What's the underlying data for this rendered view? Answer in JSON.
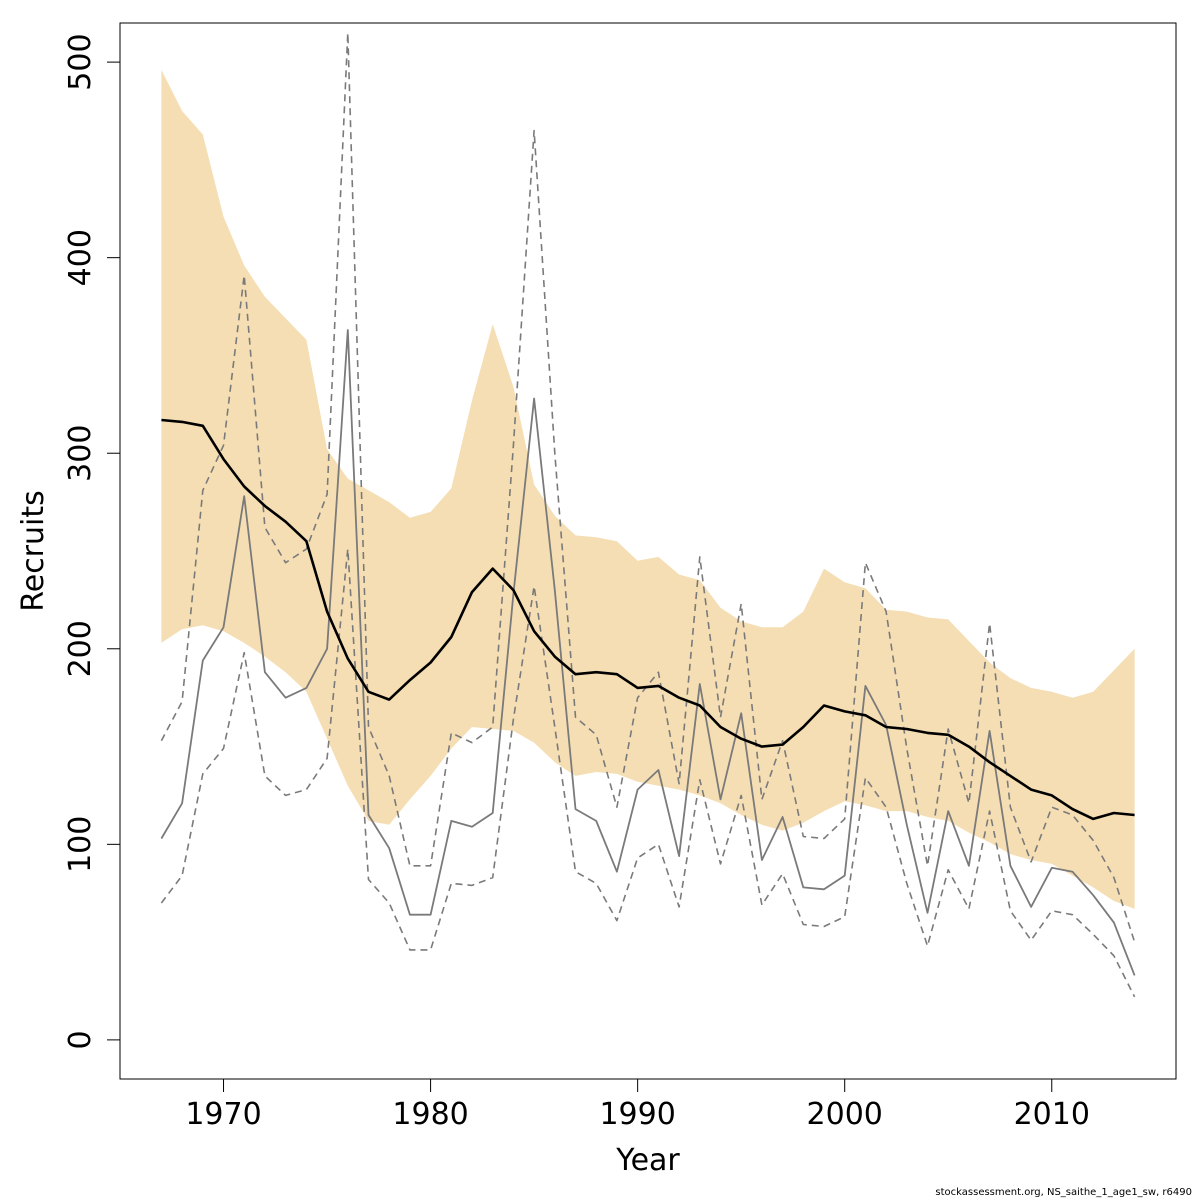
{
  "chart_data": {
    "type": "line",
    "xlabel": "Year",
    "ylabel": "Recruits",
    "xlim": [
      1965,
      2016
    ],
    "ylim": [
      -20,
      520
    ],
    "x_ticks": [
      1970,
      1980,
      1990,
      2000,
      2010
    ],
    "y_ticks": [
      0,
      100,
      200,
      300,
      400,
      500
    ],
    "grid": false,
    "colors": {
      "band": "#f5deb3",
      "main": "#000000",
      "obs": "#7a7a7a"
    },
    "x": [
      1967,
      1968,
      1969,
      1970,
      1971,
      1972,
      1973,
      1974,
      1975,
      1976,
      1977,
      1978,
      1979,
      1980,
      1981,
      1982,
      1983,
      1984,
      1985,
      1986,
      1987,
      1988,
      1989,
      1990,
      1991,
      1992,
      1993,
      1994,
      1995,
      1996,
      1997,
      1998,
      1999,
      2000,
      2001,
      2002,
      2003,
      2004,
      2005,
      2006,
      2007,
      2008,
      2009,
      2010,
      2011,
      2012,
      2013,
      2014
    ],
    "band": {
      "name": "",
      "upper": [
        496,
        475,
        463,
        421,
        396,
        380,
        369,
        358,
        302,
        287,
        281,
        275,
        267,
        270,
        282,
        327,
        366,
        334,
        284,
        268,
        258,
        257,
        255,
        245,
        247,
        238,
        235,
        221,
        214,
        211,
        211,
        219,
        241,
        234,
        231,
        220,
        219,
        216,
        215,
        204,
        193,
        185,
        180,
        178,
        175,
        178,
        189,
        200
      ],
      "lower": [
        203,
        210,
        212,
        209,
        203,
        196,
        188,
        178,
        154,
        130,
        112,
        110,
        123,
        135,
        149,
        160,
        159,
        158,
        152,
        142,
        135,
        137,
        136,
        132,
        130,
        128,
        125,
        121,
        115,
        110,
        107,
        111,
        117,
        122,
        120,
        117,
        117,
        114,
        112,
        106,
        101,
        95,
        92,
        90,
        84,
        78,
        71,
        67
      ]
    },
    "series": [
      {
        "name": "",
        "style": "solid-thick",
        "values": [
          317,
          316,
          314,
          297,
          283,
          273,
          265,
          255,
          219,
          195,
          178,
          174,
          184,
          193,
          206,
          229,
          241,
          230,
          209,
          196,
          187,
          188,
          187,
          180,
          181,
          175,
          171,
          160,
          154,
          150,
          151,
          160,
          171,
          168,
          166,
          160,
          159,
          157,
          156,
          150,
          142,
          135,
          128,
          125,
          118,
          113,
          116,
          115
        ]
      },
      {
        "name": "",
        "style": "solid",
        "values": [
          103,
          121,
          194,
          211,
          278,
          188,
          175,
          180,
          200,
          363,
          115,
          98,
          64,
          64,
          112,
          109,
          116,
          228,
          328,
          230,
          118,
          112,
          86,
          128,
          138,
          94,
          182,
          123,
          167,
          92,
          114,
          78,
          77,
          84,
          181,
          161,
          110,
          65,
          117,
          89,
          158,
          89,
          68,
          88,
          86,
          74,
          60,
          33
        ]
      },
      {
        "name": "",
        "style": "dashed",
        "values": [
          153,
          173,
          281,
          304,
          391,
          262,
          244,
          251,
          279,
          515,
          160,
          135,
          89,
          89,
          157,
          152,
          160,
          304,
          465,
          300,
          165,
          156,
          119,
          175,
          188,
          131,
          247,
          165,
          223,
          123,
          153,
          104,
          103,
          113,
          244,
          219,
          149,
          89,
          159,
          121,
          213,
          119,
          91,
          119,
          115,
          102,
          83,
          50
        ]
      },
      {
        "name": "",
        "style": "dashed",
        "values": [
          70,
          84,
          136,
          149,
          198,
          135,
          125,
          128,
          144,
          251,
          82,
          70,
          46,
          46,
          80,
          79,
          83,
          164,
          232,
          160,
          86,
          80,
          61,
          93,
          100,
          68,
          133,
          90,
          125,
          69,
          85,
          59,
          58,
          63,
          134,
          119,
          80,
          48,
          87,
          67,
          117,
          66,
          51,
          66,
          64,
          54,
          43,
          22
        ]
      }
    ]
  },
  "caption": "stockassessment.org, NS_saithe_1_age1_sw, r6490"
}
